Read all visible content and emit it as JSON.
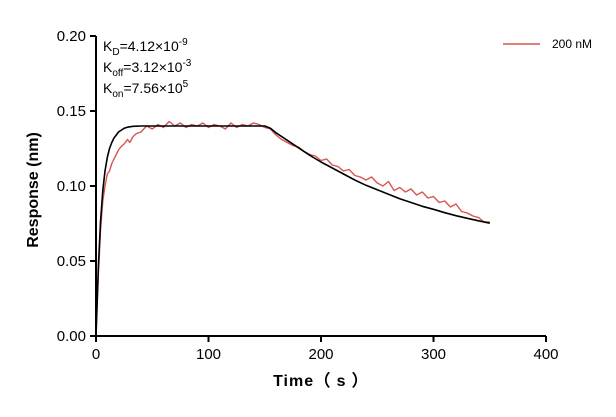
{
  "chart_data": {
    "type": "line",
    "title": "",
    "xlabel": "Time（ s ）",
    "ylabel": "Response (nm)",
    "xlim": [
      0,
      400
    ],
    "ylim": [
      0,
      0.2
    ],
    "x_ticks": [
      0,
      100,
      200,
      300,
      400
    ],
    "y_ticks": [
      0.0,
      0.05,
      0.1,
      0.15,
      0.2
    ],
    "x_tick_labels": [
      "0",
      "100",
      "200",
      "300",
      "400"
    ],
    "y_tick_labels": [
      "0.00",
      "0.05",
      "0.10",
      "0.15",
      "0.20"
    ],
    "grid": false,
    "legend_position": "top-right",
    "annotations": [
      {
        "base": "K",
        "sub": "D",
        "value": "=4.12×10",
        "exp": "-9"
      },
      {
        "base": "K",
        "sub": "off",
        "value": "=3.12×10",
        "exp": "-3"
      },
      {
        "base": "K",
        "sub": "on",
        "value": "=7.56×10",
        "exp": "5"
      }
    ],
    "series": [
      {
        "name": "200 nM",
        "color": "#d9534f",
        "style": "measured",
        "x": [
          0,
          2,
          4,
          6,
          8,
          10,
          12,
          14,
          16,
          18,
          20,
          22,
          25,
          28,
          30,
          33,
          36,
          40,
          45,
          50,
          55,
          60,
          65,
          70,
          75,
          80,
          85,
          90,
          95,
          100,
          105,
          110,
          115,
          120,
          125,
          130,
          135,
          140,
          145,
          150,
          155,
          160,
          165,
          170,
          175,
          180,
          185,
          190,
          195,
          200,
          205,
          210,
          215,
          220,
          225,
          230,
          235,
          240,
          245,
          250,
          255,
          260,
          265,
          270,
          275,
          280,
          285,
          290,
          295,
          300,
          305,
          310,
          315,
          320,
          325,
          330,
          335,
          340,
          345,
          350
        ],
        "y": [
          0.0,
          0.04,
          0.07,
          0.09,
          0.1,
          0.108,
          0.11,
          0.115,
          0.118,
          0.121,
          0.124,
          0.126,
          0.128,
          0.131,
          0.129,
          0.133,
          0.135,
          0.136,
          0.14,
          0.138,
          0.141,
          0.139,
          0.143,
          0.14,
          0.142,
          0.139,
          0.141,
          0.14,
          0.142,
          0.139,
          0.141,
          0.14,
          0.138,
          0.142,
          0.139,
          0.141,
          0.14,
          0.142,
          0.141,
          0.139,
          0.138,
          0.134,
          0.131,
          0.129,
          0.127,
          0.126,
          0.123,
          0.121,
          0.12,
          0.117,
          0.118,
          0.114,
          0.113,
          0.11,
          0.111,
          0.107,
          0.106,
          0.104,
          0.106,
          0.102,
          0.1,
          0.103,
          0.097,
          0.099,
          0.096,
          0.098,
          0.094,
          0.096,
          0.092,
          0.093,
          0.089,
          0.09,
          0.086,
          0.088,
          0.083,
          0.082,
          0.08,
          0.079,
          0.076,
          0.076
        ]
      },
      {
        "name": "",
        "color": "#000000",
        "style": "fit",
        "x": [
          0,
          2,
          4,
          6,
          8,
          10,
          12,
          14,
          16,
          18,
          20,
          22,
          25,
          28,
          30,
          33,
          36,
          40,
          45,
          50,
          60,
          70,
          80,
          90,
          100,
          110,
          120,
          130,
          140,
          150,
          155,
          160,
          170,
          180,
          190,
          200,
          210,
          220,
          230,
          240,
          250,
          260,
          270,
          280,
          290,
          300,
          310,
          320,
          330,
          340,
          350
        ],
        "y": [
          0.0,
          0.045,
          0.076,
          0.097,
          0.11,
          0.119,
          0.125,
          0.129,
          0.132,
          0.134,
          0.136,
          0.137,
          0.1385,
          0.1392,
          0.1395,
          0.1398,
          0.1399,
          0.14,
          0.14,
          0.14,
          0.14,
          0.14,
          0.14,
          0.14,
          0.14,
          0.14,
          0.14,
          0.14,
          0.14,
          0.14,
          0.1385,
          0.1355,
          0.1305,
          0.1255,
          0.1205,
          0.116,
          0.112,
          0.108,
          0.104,
          0.1005,
          0.0975,
          0.0945,
          0.0915,
          0.089,
          0.0865,
          0.0845,
          0.0822,
          0.0802,
          0.0785,
          0.0768,
          0.0752
        ]
      }
    ]
  }
}
